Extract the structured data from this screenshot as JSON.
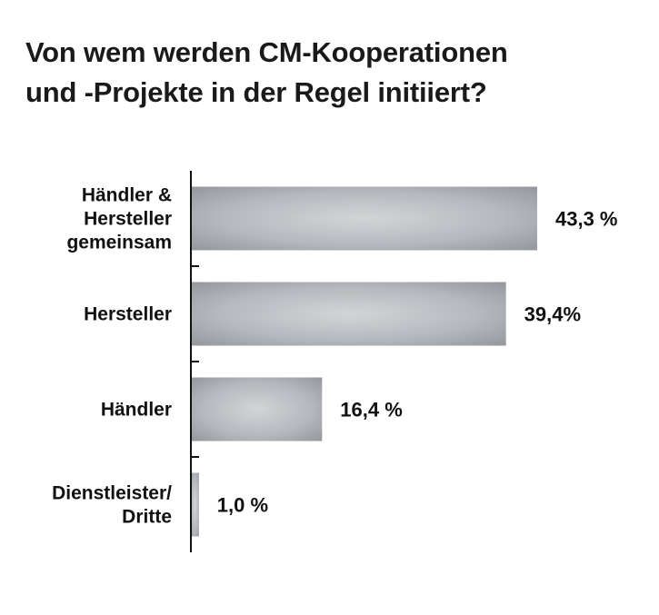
{
  "chart_data": {
    "type": "bar",
    "orientation": "horizontal",
    "title_lines": [
      "Von wem werden CM-Kooperationen",
      "und -Projekte in der Regel initiiert?"
    ],
    "categories": [
      [
        "Händler &",
        "Hersteller",
        "gemeinsam"
      ],
      [
        "Hersteller"
      ],
      [
        "Händler"
      ],
      [
        "Dienstleister/",
        "Dritte"
      ]
    ],
    "values": [
      43.3,
      39.4,
      16.4,
      1.0
    ],
    "value_labels": [
      "43,3 %",
      "39,4%",
      "16,4 %",
      "1,0 %"
    ],
    "xlim": [
      0,
      50
    ],
    "grid": false,
    "legend": "none",
    "bar_color": "#a9adb1"
  }
}
